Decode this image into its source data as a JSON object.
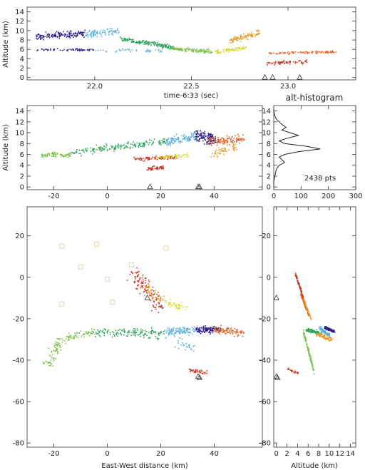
{
  "chart_data": [
    {
      "id": "alt_vs_time",
      "type": "scatter",
      "xlabel": "time-6:33 (sec)",
      "ylabel": "Altitude (km)",
      "xlim": [
        21.65,
        23.35
      ],
      "ylim": [
        -0.5,
        15
      ],
      "xticks": [
        22.0,
        22.5,
        23.0
      ],
      "xtick_labels": [
        "22.0",
        "22.5",
        "23.0"
      ],
      "yticks": [
        0,
        2,
        4,
        6,
        8,
        10,
        12,
        14
      ],
      "triangles": [
        [
          22.88,
          0
        ],
        [
          22.92,
          0
        ],
        [
          23.06,
          0
        ]
      ],
      "segments": [
        {
          "color": "#2e1c8a",
          "x0": 21.7,
          "x1": 21.95,
          "y0": 8.8,
          "y1": 9.5,
          "n": 150,
          "spread": 0.8
        },
        {
          "color": "#2e1c8a",
          "x0": 21.7,
          "x1": 22.0,
          "y0": 6.0,
          "y1": 6.0,
          "n": 60,
          "spread": 0.3
        },
        {
          "color": "#5aaee0",
          "x0": 21.95,
          "x1": 22.12,
          "y0": 9.5,
          "y1": 10.0,
          "n": 90,
          "spread": 1.0
        },
        {
          "color": "#5aaee0",
          "x0": 22.0,
          "x1": 22.35,
          "y0": 6.0,
          "y1": 5.8,
          "n": 40,
          "spread": 0.4
        },
        {
          "color": "#2aa25a",
          "x0": 22.12,
          "x1": 22.4,
          "y0": 8.5,
          "y1": 6.5,
          "n": 160,
          "spread": 0.6
        },
        {
          "color": "#7cc04a",
          "x0": 22.4,
          "x1": 22.6,
          "y0": 6.3,
          "y1": 5.6,
          "n": 120,
          "spread": 0.5
        },
        {
          "color": "#d8d83a",
          "x0": 22.62,
          "x1": 22.78,
          "y0": 5.5,
          "y1": 6.5,
          "n": 80,
          "spread": 0.5
        },
        {
          "color": "#e89a22",
          "x0": 22.7,
          "x1": 22.85,
          "y0": 8.0,
          "y1": 9.8,
          "n": 90,
          "spread": 0.8
        },
        {
          "color": "#e06020",
          "x0": 22.9,
          "x1": 23.25,
          "y0": 5.3,
          "y1": 5.6,
          "n": 90,
          "spread": 0.3
        },
        {
          "color": "#c83020",
          "x0": 22.88,
          "x1": 23.1,
          "y0": 3.2,
          "y1": 3.5,
          "n": 60,
          "spread": 0.5
        }
      ]
    },
    {
      "id": "alt_vs_ew",
      "type": "scatter",
      "xlabel": "",
      "ylabel": "Altitude (km)",
      "xlim": [
        -30,
        58
      ],
      "ylim": [
        -0.5,
        15
      ],
      "xticks": [
        -20,
        0,
        20,
        40
      ],
      "xtick_labels": [
        "-20",
        "0",
        "20",
        "40"
      ],
      "yticks": [
        0,
        2,
        4,
        6,
        8,
        10,
        12,
        14
      ],
      "triangles": [
        [
          16,
          0
        ],
        [
          34,
          0
        ],
        [
          34.5,
          0
        ]
      ],
      "segments": [
        {
          "color": "#7cc04a",
          "x0": -25,
          "x1": -14,
          "y0": 6.0,
          "y1": 6.0,
          "n": 70,
          "spread": 0.5
        },
        {
          "color": "#2aa25a",
          "x0": -14,
          "x1": 22,
          "y0": 6.5,
          "y1": 8.5,
          "n": 170,
          "spread": 0.8
        },
        {
          "color": "#5aaee0",
          "x0": 22,
          "x1": 33,
          "y0": 8.5,
          "y1": 9.5,
          "n": 110,
          "spread": 1.0
        },
        {
          "color": "#2e1c8a",
          "x0": 33,
          "x1": 40,
          "y0": 9.5,
          "y1": 9.0,
          "n": 130,
          "spread": 1.4
        },
        {
          "color": "#e06020",
          "x0": 38,
          "x1": 51,
          "y0": 8.5,
          "y1": 9.0,
          "n": 110,
          "spread": 1.0
        },
        {
          "color": "#c83020",
          "x0": 10,
          "x1": 26,
          "y0": 5.3,
          "y1": 5.6,
          "n": 80,
          "spread": 0.5
        },
        {
          "color": "#c83020",
          "x0": 15,
          "x1": 21,
          "y0": 3.5,
          "y1": 3.8,
          "n": 45,
          "spread": 0.5
        },
        {
          "color": "#d8d83a",
          "x0": 18,
          "x1": 30,
          "y0": 5.5,
          "y1": 6.0,
          "n": 60,
          "spread": 0.5
        },
        {
          "color": "#e89a22",
          "x0": 38,
          "x1": 48,
          "y0": 6.0,
          "y1": 7.5,
          "n": 50,
          "spread": 0.8
        }
      ]
    },
    {
      "id": "alt_histogram",
      "type": "line",
      "title": "alt-histogram",
      "annotation": "2438 pts",
      "xlabel": "",
      "ylabel": "",
      "xlim": [
        0,
        300
      ],
      "ylim": [
        -0.5,
        15
      ],
      "xticks": [
        0,
        100,
        200,
        300
      ],
      "xtick_labels": [
        "0",
        "100",
        "200",
        "300"
      ],
      "yticks": [
        0,
        2,
        4,
        6,
        8,
        10,
        12,
        14
      ],
      "curve_counts": [
        0,
        0,
        0,
        2,
        4,
        6,
        8,
        12,
        20,
        40,
        30,
        20,
        40,
        90,
        170,
        120,
        40,
        20,
        50,
        90,
        60,
        30,
        45,
        30,
        20,
        10,
        5,
        2,
        0,
        0
      ],
      "curve_alt_start": 0.0,
      "curve_alt_step": 0.5
    },
    {
      "id": "plan_view",
      "type": "scatter",
      "xlabel": "East-West distance (km)",
      "ylabel": "",
      "xlim": [
        -30,
        58
      ],
      "ylim": [
        -82,
        34
      ],
      "xticks": [
        -20,
        0,
        20,
        40
      ],
      "xtick_labels": [
        "-20",
        "0",
        "20",
        "40"
      ],
      "yticks": [
        -80,
        -60,
        -40,
        -20,
        0,
        20
      ],
      "yticks_labels": [
        "-80",
        "-60",
        "-40",
        "-20",
        "0",
        "20"
      ],
      "triangles": [
        [
          15,
          -10
        ],
        [
          34,
          -48
        ],
        [
          34.5,
          -48.5
        ]
      ],
      "squares": [
        [
          -17,
          15
        ],
        [
          -4,
          16
        ],
        [
          -10,
          5
        ],
        [
          22,
          14
        ],
        [
          9,
          6
        ],
        [
          0,
          -1
        ],
        [
          2,
          -12
        ],
        [
          -17,
          -13
        ]
      ],
      "segments": [
        {
          "color": "#7cc04a",
          "x0": -23,
          "x1": -18,
          "y0": -42,
          "y1": -32,
          "n": 60,
          "spread": 3.0
        },
        {
          "color": "#7cc04a",
          "x0": -18,
          "x1": -5,
          "y0": -30,
          "y1": -26,
          "n": 70,
          "spread": 2.5
        },
        {
          "color": "#2aa25a",
          "x0": -5,
          "x1": 22,
          "y0": -26,
          "y1": -27,
          "n": 130,
          "spread": 2.8
        },
        {
          "color": "#5aaee0",
          "x0": 22,
          "x1": 33,
          "y0": -26,
          "y1": -25,
          "n": 110,
          "spread": 2.5
        },
        {
          "color": "#2e1c8a",
          "x0": 33,
          "x1": 42,
          "y0": -25,
          "y1": -25,
          "n": 120,
          "spread": 2.0
        },
        {
          "color": "#e06020",
          "x0": 40,
          "x1": 50,
          "y0": -25,
          "y1": -26,
          "n": 90,
          "spread": 2.5
        },
        {
          "color": "#c83020",
          "x0": 10,
          "x1": 20,
          "y0": 2,
          "y1": -14,
          "n": 120,
          "spread": 4.0
        },
        {
          "color": "#c83020",
          "x0": 30,
          "x1": 37,
          "y0": -44,
          "y1": -46,
          "n": 35,
          "spread": 1.5
        },
        {
          "color": "#e89a22",
          "x0": 14,
          "x1": 20,
          "y0": -5,
          "y1": -10,
          "n": 40,
          "spread": 3.0
        },
        {
          "color": "#d8d83a",
          "x0": 22,
          "x1": 30,
          "y0": -12,
          "y1": -16,
          "n": 40,
          "spread": 2.5
        },
        {
          "color": "#5aaee0",
          "x0": 25,
          "x1": 32,
          "y0": -30,
          "y1": -35,
          "n": 25,
          "spread": 3.0
        }
      ]
    },
    {
      "id": "ns_vs_alt",
      "type": "scatter",
      "xlabel": "Altitude (km)",
      "ylabel": "",
      "xlim": [
        -0.5,
        15
      ],
      "ylim": [
        -82,
        34
      ],
      "xticks": [
        0,
        2,
        4,
        6,
        8,
        10,
        12,
        14
      ],
      "xtick_labels": [
        "0",
        "2",
        "4",
        "6",
        "8",
        "10",
        "12",
        "14"
      ],
      "yticks": [
        -80,
        -60,
        -40,
        -20,
        0,
        20
      ],
      "yticks_labels": [
        "-80",
        "-60",
        "-40",
        "-20",
        "0",
        "20"
      ],
      "triangles": [
        [
          0,
          -10
        ],
        [
          0,
          -48
        ],
        [
          0.2,
          -48.5
        ]
      ],
      "segments": [
        {
          "color": "#c83020",
          "x0": 3.5,
          "x1": 5.5,
          "y0": 2,
          "y1": -14,
          "n": 90,
          "spread": 1.2
        },
        {
          "color": "#e06020",
          "x0": 4.5,
          "x1": 6.0,
          "y0": -8,
          "y1": -18,
          "n": 50,
          "spread": 0.8
        },
        {
          "color": "#e89a22",
          "x0": 5.0,
          "x1": 6.5,
          "y0": -10,
          "y1": -20,
          "n": 40,
          "spread": 0.6
        },
        {
          "color": "#7cc04a",
          "x0": 5.0,
          "x1": 7.0,
          "y0": -26,
          "y1": -45,
          "n": 110,
          "spread": 1.6
        },
        {
          "color": "#2aa25a",
          "x0": 5.5,
          "x1": 8.5,
          "y0": -25,
          "y1": -27,
          "n": 90,
          "spread": 1.2
        },
        {
          "color": "#5aaee0",
          "x0": 8.0,
          "x1": 10.0,
          "y0": -24,
          "y1": -28,
          "n": 80,
          "spread": 1.0
        },
        {
          "color": "#2e1c8a",
          "x0": 9.0,
          "x1": 11.0,
          "y0": -24,
          "y1": -26,
          "n": 90,
          "spread": 1.0
        },
        {
          "color": "#e89a22",
          "x0": 7.5,
          "x1": 10.5,
          "y0": -27,
          "y1": -30,
          "n": 80,
          "spread": 1.2
        },
        {
          "color": "#c83020",
          "x0": 2.0,
          "x1": 4.0,
          "y0": -44,
          "y1": -46,
          "n": 25,
          "spread": 0.6
        }
      ]
    }
  ]
}
